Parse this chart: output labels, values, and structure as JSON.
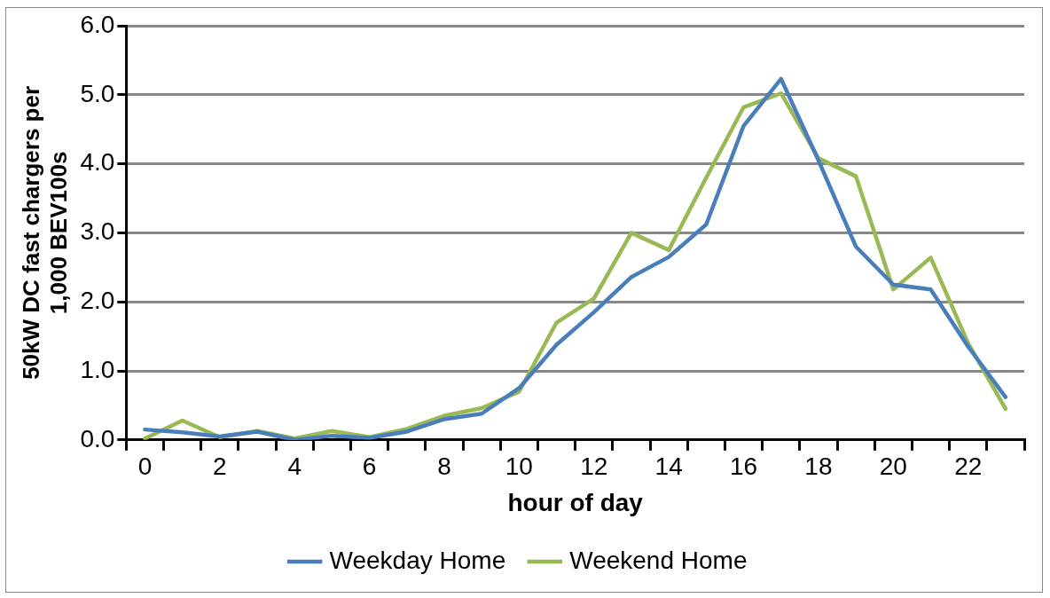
{
  "chart_data": {
    "type": "line",
    "xlabel": "hour of day",
    "ylabel": "50kW DC fast chargers per 1,000 BEV100s",
    "categories": [
      "0",
      null,
      "2",
      null,
      "4",
      null,
      "6",
      null,
      "8",
      null,
      "10",
      null,
      "12",
      null,
      "14",
      null,
      "16",
      null,
      "18",
      null,
      "20",
      null,
      "22",
      null
    ],
    "series": [
      {
        "name": "Weekday Home",
        "color": "#4a7ebb",
        "values": [
          0.15,
          0.11,
          0.05,
          0.12,
          0.0,
          0.06,
          0.03,
          0.12,
          0.3,
          0.38,
          0.75,
          1.38,
          1.85,
          2.36,
          2.65,
          3.12,
          4.55,
          5.23,
          4.05,
          2.8,
          2.25,
          2.18,
          1.35,
          0.62
        ]
      },
      {
        "name": "Weekend Home",
        "color": "#98b954",
        "values": [
          0.02,
          0.28,
          0.04,
          0.13,
          0.02,
          0.13,
          0.04,
          0.16,
          0.35,
          0.46,
          0.7,
          1.7,
          2.05,
          3.0,
          2.75,
          3.8,
          4.82,
          5.02,
          4.08,
          3.82,
          2.18,
          2.64,
          1.4,
          0.45
        ]
      }
    ],
    "ylim": [
      0,
      6
    ],
    "yticks": [
      {
        "value": 0,
        "label": "0.0"
      },
      {
        "value": 1,
        "label": "1.0"
      },
      {
        "value": 2,
        "label": "2.0"
      },
      {
        "value": 3,
        "label": "3.0"
      },
      {
        "value": 4,
        "label": "4.0"
      },
      {
        "value": 5,
        "label": "5.0"
      },
      {
        "value": 6,
        "label": "6.0"
      }
    ],
    "grid": "y",
    "legend": "bottom",
    "marker": "none",
    "line_style": "solid"
  }
}
